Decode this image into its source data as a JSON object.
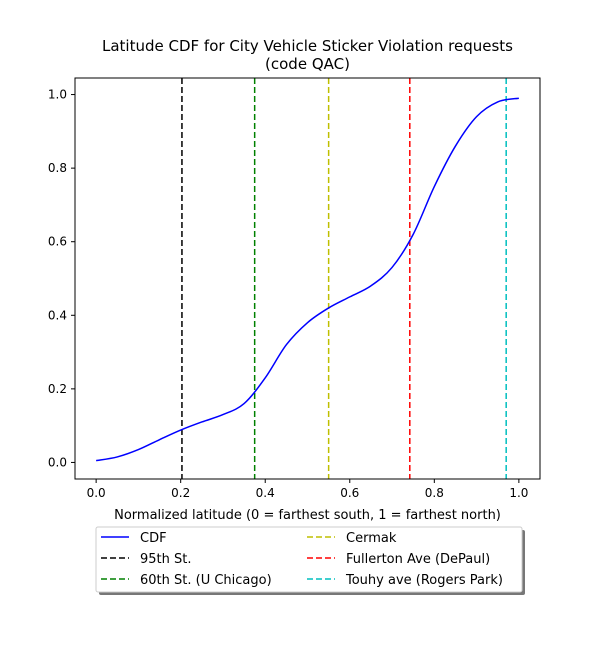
{
  "chart_data": {
    "type": "line",
    "title_line1": "Latitude CDF for City Vehicle Sticker Violation  requests",
    "title_line2": "(code QAC)",
    "xlabel": "Normalized latitude (0 = farthest south, 1 = farthest north)",
    "ylabel": "",
    "xlim": [
      -0.05,
      1.05
    ],
    "ylim": [
      -0.045,
      1.045
    ],
    "xticks": [
      {
        "value": 0.0,
        "label": "0.0"
      },
      {
        "value": 0.2,
        "label": "0.2"
      },
      {
        "value": 0.4,
        "label": "0.4"
      },
      {
        "value": 0.6,
        "label": "0.6"
      },
      {
        "value": 0.8,
        "label": "0.8"
      },
      {
        "value": 1.0,
        "label": "1.0"
      }
    ],
    "yticks": [
      {
        "value": 0.0,
        "label": "0.0"
      },
      {
        "value": 0.2,
        "label": "0.2"
      },
      {
        "value": 0.4,
        "label": "0.4"
      },
      {
        "value": 0.6,
        "label": "0.6"
      },
      {
        "value": 0.8,
        "label": "0.8"
      },
      {
        "value": 1.0,
        "label": "1.0"
      }
    ],
    "grid": false,
    "legend_placement": "below",
    "series": [
      {
        "name": "CDF",
        "color": "#0000ff",
        "x": [
          0.0,
          0.05,
          0.1,
          0.15,
          0.2,
          0.25,
          0.3,
          0.35,
          0.4,
          0.45,
          0.5,
          0.55,
          0.6,
          0.65,
          0.7,
          0.75,
          0.8,
          0.85,
          0.9,
          0.95,
          1.0
        ],
        "y": [
          0.005,
          0.015,
          0.035,
          0.062,
          0.088,
          0.11,
          0.13,
          0.16,
          0.23,
          0.32,
          0.38,
          0.42,
          0.45,
          0.48,
          0.53,
          0.62,
          0.75,
          0.86,
          0.94,
          0.98,
          0.99
        ]
      }
    ],
    "vlines": [
      {
        "name": "95th St.",
        "x": 0.203,
        "color": "#000000"
      },
      {
        "name": "60th St. (U Chicago)",
        "x": 0.375,
        "color": "#008000"
      },
      {
        "name": "Cermak",
        "x": 0.55,
        "color": "#bfbf00"
      },
      {
        "name": "Fullerton Ave (DePaul)",
        "x": 0.742,
        "color": "#ff0000"
      },
      {
        "name": "Touhy ave (Rogers Park)",
        "x": 0.97,
        "color": "#00bfbf"
      }
    ]
  }
}
